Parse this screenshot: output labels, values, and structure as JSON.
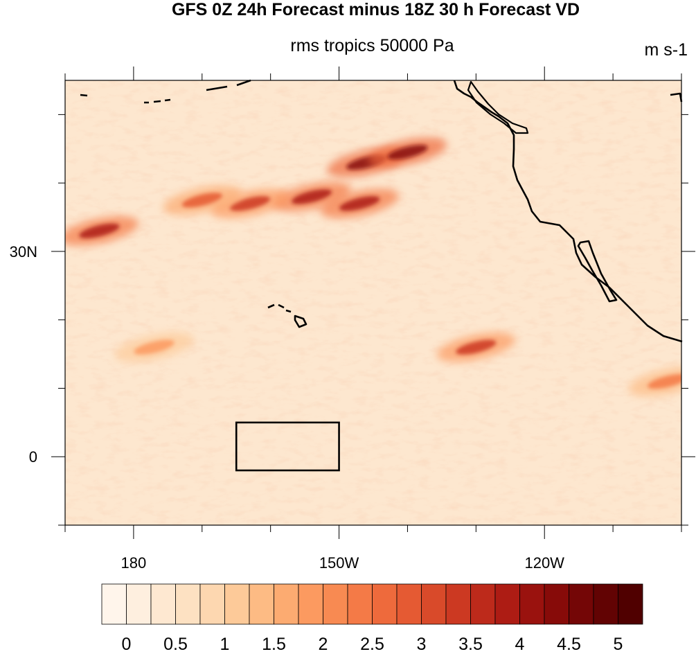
{
  "title": "GFS 0Z 24h Forecast minus 18Z 30 h Forecast VD",
  "subtitle": "rms tropics 50000 Pa",
  "units": "m s-1",
  "map": {
    "lon_range": [
      170,
      260
    ],
    "lat_range": [
      -10,
      55
    ],
    "lon_ticks": [
      {
        "lon": 180,
        "label": "180"
      },
      {
        "lon": 210,
        "label": "150W"
      },
      {
        "lon": 240,
        "label": "120W"
      }
    ],
    "lat_ticks": [
      {
        "lat": 0,
        "label": "0"
      },
      {
        "lat": 30,
        "label": "30N"
      }
    ],
    "region_box": {
      "lon_min": 195,
      "lon_max": 210,
      "lat_min": -2,
      "lat_max": 5
    }
  },
  "colorbar": {
    "levels": [
      "0",
      "0.5",
      "1",
      "1.5",
      "2",
      "2.5",
      "3",
      "3.5",
      "4",
      "4.5",
      "5"
    ],
    "colors": [
      "#fff5eb",
      "#feefdf",
      "#fee8d1",
      "#fde1c2",
      "#fdd7b0",
      "#fdca99",
      "#fdbb84",
      "#fcab71",
      "#fc9a60",
      "#f88a52",
      "#f47a47",
      "#ee6a3c",
      "#e55a33",
      "#d94a2a",
      "#cc3922",
      "#bd2a1b",
      "#ad1c14",
      "#9a120e",
      "#870b09",
      "#740606",
      "#620303",
      "#500000"
    ]
  },
  "chart_data": {
    "type": "heatmap",
    "title": "GFS 0Z 24h Forecast minus 18Z 30 h Forecast VD",
    "subtitle": "rms tropics 50000 Pa",
    "units": "m s-1",
    "x_range": [
      170,
      260
    ],
    "y_range": [
      -10,
      55
    ],
    "color_range": [
      0,
      5
    ],
    "hotspots": [
      {
        "lon": 214,
        "lat": 43,
        "value": 4.5
      },
      {
        "lon": 220,
        "lat": 44.5,
        "value": 4.5
      },
      {
        "lon": 175,
        "lat": 33,
        "value": 4
      },
      {
        "lon": 206,
        "lat": 38,
        "value": 4
      },
      {
        "lon": 213,
        "lat": 37,
        "value": 4
      },
      {
        "lon": 197,
        "lat": 37,
        "value": 3.5
      },
      {
        "lon": 190,
        "lat": 37.5,
        "value": 3
      },
      {
        "lon": 230,
        "lat": 16,
        "value": 3.5
      },
      {
        "lon": 183,
        "lat": 16,
        "value": 2
      },
      {
        "lon": 258,
        "lat": 11,
        "value": 2.5
      }
    ]
  }
}
